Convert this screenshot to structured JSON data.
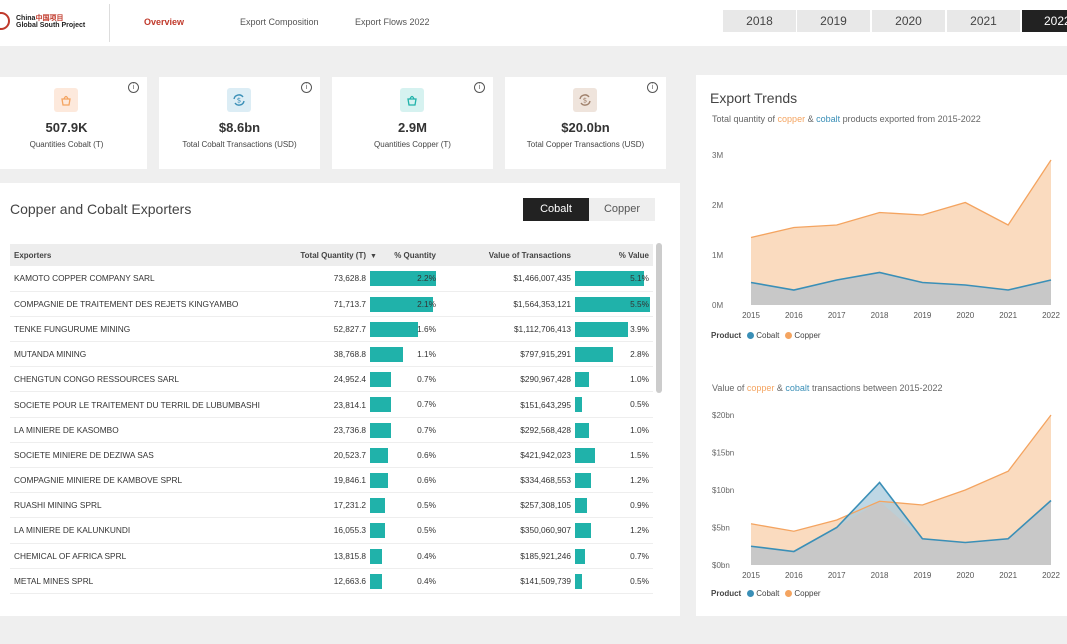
{
  "header": {
    "logo_line1": "China",
    "logo_line1_cn": "中国项目",
    "logo_line2": "Global South Project",
    "tabs": [
      "Overview",
      "Export Composition",
      "Export Flows 2022"
    ],
    "years": [
      "2018",
      "2019",
      "2020",
      "2021",
      "2022"
    ],
    "active_year": "2022"
  },
  "kpis": [
    {
      "value": "507.9K",
      "label": "Quantities Cobalt (T)",
      "icon": "cobalt-bucket-icon",
      "color": "#f4a460"
    },
    {
      "value": "$8.6bn",
      "label": "Total Cobalt Transactions (USD)",
      "icon": "cobalt-exchange-icon",
      "color": "#3a8fb7"
    },
    {
      "value": "2.9M",
      "label": "Quantities Copper (T)",
      "icon": "copper-bucket-icon",
      "color": "#20b2aa"
    },
    {
      "value": "$20.0bn",
      "label": "Total Copper Transactions (USD)",
      "icon": "copper-exchange-icon",
      "color": "#a0816c"
    }
  ],
  "exporters": {
    "title": "Copper and Cobalt Exporters",
    "toggle": [
      "Cobalt",
      "Copper"
    ],
    "columns": [
      "Exporters",
      "Total Quantity (T)",
      "% Quantity",
      "Value of Transactions",
      "% Value"
    ],
    "rows": [
      {
        "name": "KAMOTO COPPER COMPANY SARL",
        "qty": "73,628.8",
        "pq": "2.2%",
        "pq_v": 2.2,
        "val": "$1,466,007,435",
        "pv": "5.1%",
        "pv_v": 5.1
      },
      {
        "name": "COMPAGNIE DE TRAITEMENT DES REJETS KINGYAMBO",
        "qty": "71,713.7",
        "pq": "2.1%",
        "pq_v": 2.1,
        "val": "$1,564,353,121",
        "pv": "5.5%",
        "pv_v": 5.5
      },
      {
        "name": "TENKE FUNGURUME MINING",
        "qty": "52,827.7",
        "pq": "1.6%",
        "pq_v": 1.6,
        "val": "$1,112,706,413",
        "pv": "3.9%",
        "pv_v": 3.9
      },
      {
        "name": "MUTANDA MINING",
        "qty": "38,768.8",
        "pq": "1.1%",
        "pq_v": 1.1,
        "val": "$797,915,291",
        "pv": "2.8%",
        "pv_v": 2.8
      },
      {
        "name": "CHENGTUN CONGO RESSOURCES SARL",
        "qty": "24,952.4",
        "pq": "0.7%",
        "pq_v": 0.7,
        "val": "$290,967,428",
        "pv": "1.0%",
        "pv_v": 1.0
      },
      {
        "name": "SOCIETE POUR LE TRAITEMENT DU TERRIL DE LUBUMBASHI",
        "qty": "23,814.1",
        "pq": "0.7%",
        "pq_v": 0.7,
        "val": "$151,643,295",
        "pv": "0.5%",
        "pv_v": 0.5
      },
      {
        "name": "LA MINIERE DE KASOMBO",
        "qty": "23,736.8",
        "pq": "0.7%",
        "pq_v": 0.7,
        "val": "$292,568,428",
        "pv": "1.0%",
        "pv_v": 1.0
      },
      {
        "name": "SOCIETE MINIERE DE DEZIWA SAS",
        "qty": "20,523.7",
        "pq": "0.6%",
        "pq_v": 0.6,
        "val": "$421,942,023",
        "pv": "1.5%",
        "pv_v": 1.5
      },
      {
        "name": "COMPAGNIE MINIERE DE KAMBOVE SPRL",
        "qty": "19,846.1",
        "pq": "0.6%",
        "pq_v": 0.6,
        "val": "$334,468,553",
        "pv": "1.2%",
        "pv_v": 1.2
      },
      {
        "name": "RUASHI MINING SPRL",
        "qty": "17,231.2",
        "pq": "0.5%",
        "pq_v": 0.5,
        "val": "$257,308,105",
        "pv": "0.9%",
        "pv_v": 0.9
      },
      {
        "name": "LA MINIERE DE KALUNKUNDI",
        "qty": "16,055.3",
        "pq": "0.5%",
        "pq_v": 0.5,
        "val": "$350,060,907",
        "pv": "1.2%",
        "pv_v": 1.2
      },
      {
        "name": "CHEMICAL OF AFRICA SPRL",
        "qty": "13,815.8",
        "pq": "0.4%",
        "pq_v": 0.4,
        "val": "$185,921,246",
        "pv": "0.7%",
        "pv_v": 0.7
      },
      {
        "name": "METAL MINES SPRL",
        "qty": "12,663.6",
        "pq": "0.4%",
        "pq_v": 0.4,
        "val": "$141,509,739",
        "pv": "0.5%",
        "pv_v": 0.5
      }
    ]
  },
  "trends": {
    "title": "Export Trends",
    "sub1": {
      "pre": "Total quantity of ",
      "copper": "copper",
      "mid": " & ",
      "cobalt": "cobalt",
      "post": " products exported from 2015-2022"
    },
    "sub2": {
      "pre": "Value of ",
      "copper": "copper",
      "mid": " & ",
      "cobalt": "cobalt",
      "post": " transactions between 2015-2022"
    },
    "legend_label": "Product",
    "legend_items": [
      "Cobalt",
      "Copper"
    ]
  },
  "chart_data": [
    {
      "type": "area",
      "title": "Total quantity of copper & cobalt products exported from 2015-2022",
      "x": [
        "2015",
        "2016",
        "2017",
        "2018",
        "2019",
        "2020",
        "2021",
        "2022"
      ],
      "series": [
        {
          "name": "Copper",
          "color": "#f4a460",
          "values": [
            1.35,
            1.55,
            1.6,
            1.85,
            1.8,
            2.05,
            1.6,
            2.9
          ]
        },
        {
          "name": "Cobalt",
          "color": "#3a8fb7",
          "values": [
            0.45,
            0.3,
            0.5,
            0.65,
            0.45,
            0.4,
            0.3,
            0.5
          ]
        }
      ],
      "yticks": [
        "0M",
        "1M",
        "2M",
        "3M"
      ],
      "ylim": [
        0,
        3
      ]
    },
    {
      "type": "area",
      "title": "Value of copper & cobalt transactions between 2015-2022",
      "x": [
        "2015",
        "2016",
        "2017",
        "2018",
        "2019",
        "2020",
        "2021",
        "2022"
      ],
      "series": [
        {
          "name": "Copper",
          "color": "#f4a460",
          "values": [
            5.5,
            4.5,
            6.0,
            8.5,
            8.0,
            10.0,
            12.5,
            20.0
          ]
        },
        {
          "name": "Cobalt",
          "color": "#3a8fb7",
          "values": [
            2.5,
            1.8,
            5.0,
            11.0,
            3.5,
            3.0,
            3.5,
            8.6
          ]
        }
      ],
      "yticks": [
        "$0bn",
        "$5bn",
        "$10bn",
        "$15bn",
        "$20bn"
      ],
      "ylim": [
        0,
        20
      ]
    }
  ]
}
